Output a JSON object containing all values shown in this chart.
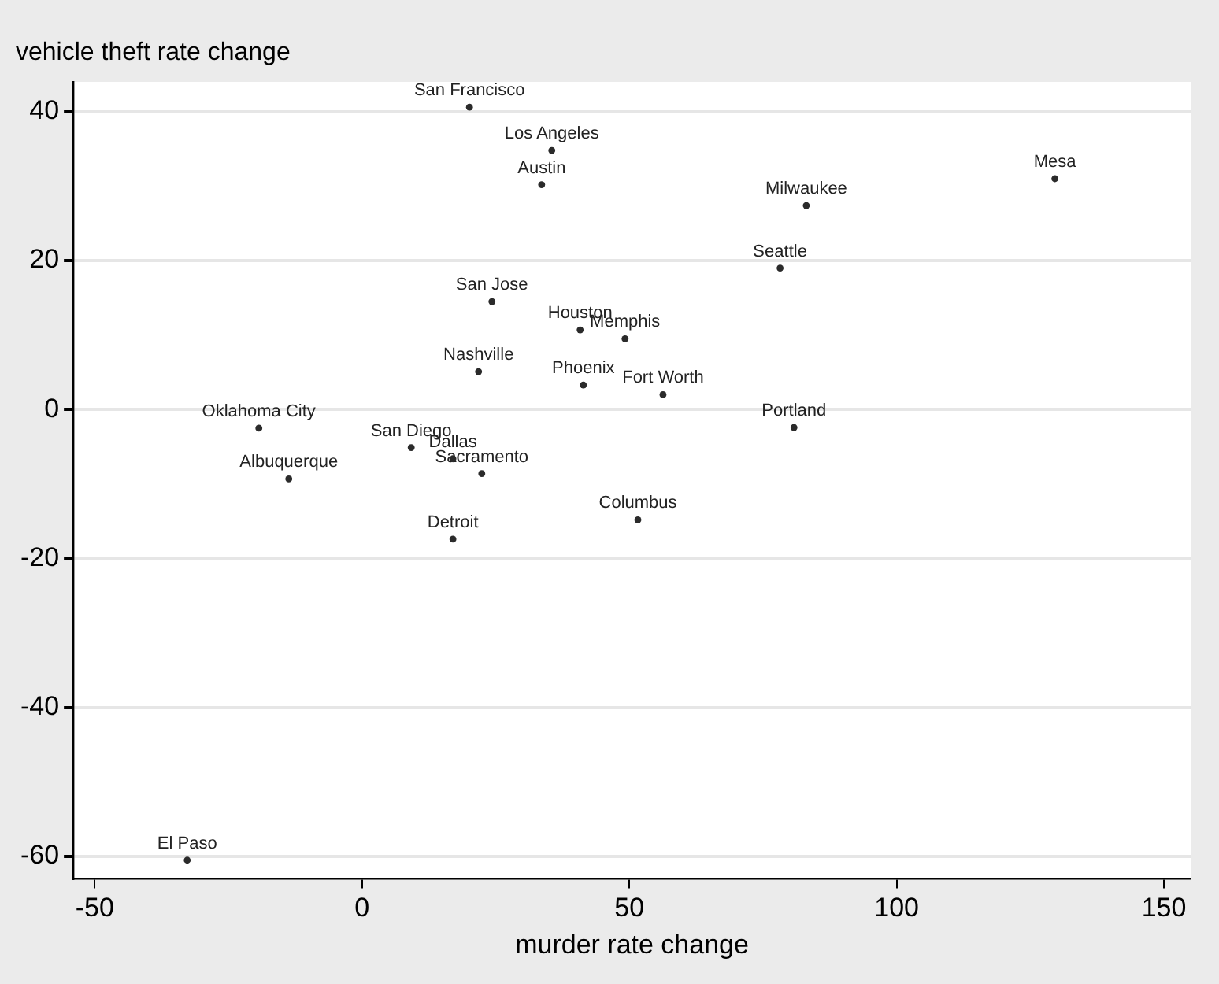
{
  "chart_data": {
    "type": "scatter",
    "xlabel": "murder rate change",
    "ylabel": "vehicle theft rate change",
    "x": [
      20.1,
      35.5,
      33.6,
      129.6,
      83.1,
      78.2,
      24.3,
      40.8,
      49.2,
      21.8,
      41.4,
      56.3,
      -19.3,
      80.8,
      9.2,
      17.0,
      22.4,
      -13.7,
      51.6,
      17.0,
      -32.7
    ],
    "series": [
      {
        "color": "#2b2b2b",
        "values": [
          40.6,
          34.8,
          30.2,
          31.0,
          27.4,
          19.0,
          14.5,
          10.7,
          9.5,
          5.1,
          3.3,
          2.0,
          -2.5,
          -2.4,
          -5.1,
          -6.6,
          -8.6,
          -9.3,
          -14.8,
          -17.4,
          -60.5
        ]
      }
    ],
    "annotations": [
      {
        "text": "San Francisco",
        "x": 20.1,
        "y": 40.6
      },
      {
        "text": "Los Angeles",
        "x": 35.5,
        "y": 34.8
      },
      {
        "text": "Austin",
        "x": 33.6,
        "y": 30.2
      },
      {
        "text": "Mesa",
        "x": 129.6,
        "y": 31.0
      },
      {
        "text": "Milwaukee",
        "x": 83.1,
        "y": 27.4
      },
      {
        "text": "Seattle",
        "x": 78.2,
        "y": 19.0
      },
      {
        "text": "San Jose",
        "x": 24.3,
        "y": 14.5
      },
      {
        "text": "Houston",
        "x": 40.8,
        "y": 10.7
      },
      {
        "text": "Memphis",
        "x": 49.2,
        "y": 9.5
      },
      {
        "text": "Nashville",
        "x": 21.8,
        "y": 5.1
      },
      {
        "text": "Phoenix",
        "x": 41.4,
        "y": 3.3
      },
      {
        "text": "Fort Worth",
        "x": 56.3,
        "y": 2.0
      },
      {
        "text": "Oklahoma City",
        "x": -19.3,
        "y": -2.5
      },
      {
        "text": "Portland",
        "x": 80.8,
        "y": -2.4
      },
      {
        "text": "San Diego",
        "x": 9.2,
        "y": -5.1
      },
      {
        "text": "Dallas",
        "x": 17.0,
        "y": -6.6
      },
      {
        "text": "Sacramento",
        "x": 22.4,
        "y": -8.6
      },
      {
        "text": "Albuquerque",
        "x": -13.7,
        "y": -9.3
      },
      {
        "text": "Columbus",
        "x": 51.6,
        "y": -14.8
      },
      {
        "text": "Detroit",
        "x": 17.0,
        "y": -17.4
      },
      {
        "text": "El Paso",
        "x": -32.7,
        "y": -60.5
      }
    ],
    "xlim": [
      -54,
      155
    ],
    "xticks": [
      -50,
      0,
      50,
      100,
      150
    ],
    "ylim": [
      -63,
      44
    ],
    "yticks": [
      -60,
      -40,
      -20,
      0,
      20,
      40
    ],
    "grid": "y",
    "legend": false,
    "marker": "circle"
  }
}
